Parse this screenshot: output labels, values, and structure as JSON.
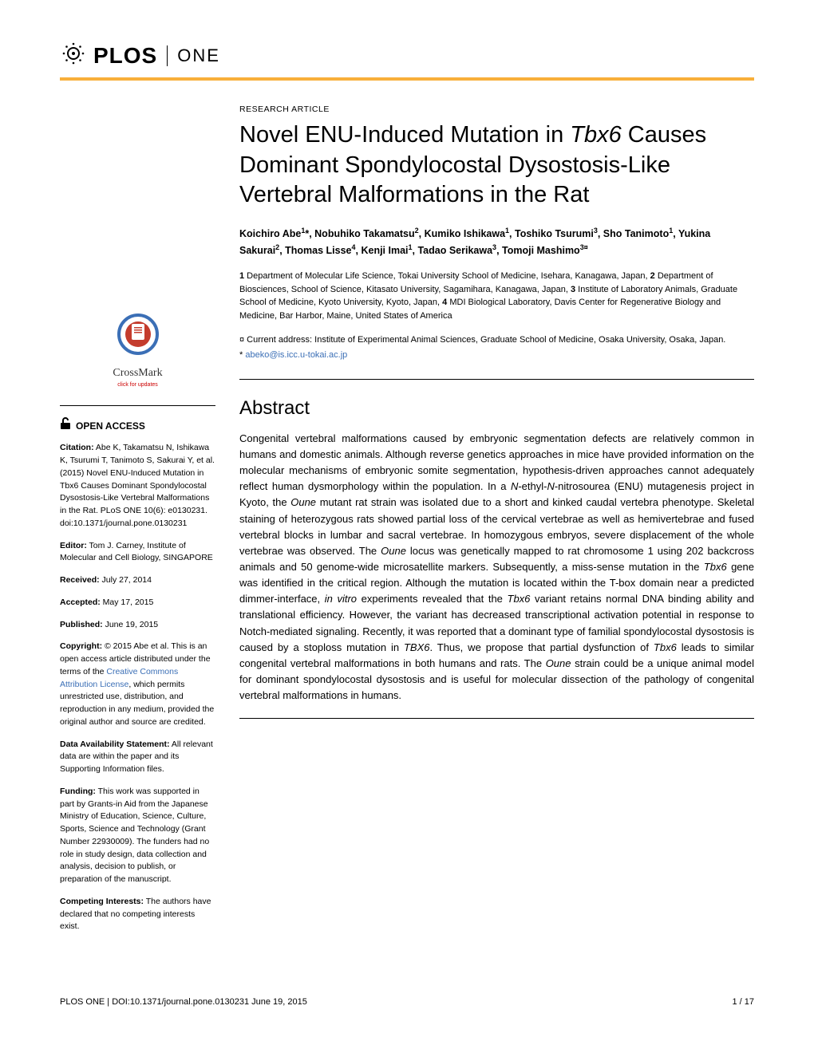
{
  "journal": {
    "logo_text": "PLOS",
    "sub_text": "ONE"
  },
  "article": {
    "type": "RESEARCH ARTICLE",
    "title_pre": "Novel ENU-Induced Mutation in ",
    "title_italic": "Tbx6",
    "title_post": " Causes Dominant Spondylocostal Dysostosis-Like Vertebral Malformations in the Rat",
    "authors_html": "Koichiro Abe<sup>1</sup>*, Nobuhiko Takamatsu<sup>2</sup>, Kumiko Ishikawa<sup>1</sup>, Toshiko Tsurumi<sup>3</sup>, Sho Tanimoto<sup>1</sup>, Yukina Sakurai<sup>2</sup>, Thomas Lisse<sup>4</sup>, Kenji Imai<sup>1</sup>, Tadao Serikawa<sup>3</sup>, Tomoji Mashimo<sup>3¤</sup>",
    "affiliations": "<span class='num'>1</span> Department of Molecular Life Science, Tokai University School of Medicine, Isehara, Kanagawa, Japan, <span class='num'>2</span> Department of Biosciences, School of Science, Kitasato University, Sagamihara, Kanagawa, Japan, <span class='num'>3</span> Institute of Laboratory Animals, Graduate School of Medicine, Kyoto University, Kyoto, Japan, <span class='num'>4</span> MDI Biological Laboratory, Davis Center for Regenerative Biology and Medicine, Bar Harbor, Maine, United States of America",
    "current_address": "¤ Current address: Institute of Experimental Animal Sciences, Graduate School of Medicine, Osaka University, Osaka, Japan.",
    "email_prefix": "* ",
    "email": "abeko@is.icc.u-tokai.ac.jp",
    "abstract_heading": "Abstract",
    "abstract": "Congenital vertebral malformations caused by embryonic segmentation defects are relatively common in humans and domestic animals. Although reverse genetics approaches in mice have provided information on the molecular mechanisms of embryonic somite segmentation, hypothesis-driven approaches cannot adequately reflect human dysmorphology within the population. In a <span class='italic'>N</span>-ethyl-<span class='italic'>N</span>-nitrosourea (ENU) mutagenesis project in Kyoto, the <span class='italic'>Oune</span> mutant rat strain was isolated due to a short and kinked caudal vertebra phenotype. Skeletal staining of heterozygous rats showed partial loss of the cervical vertebrae as well as hemivertebrae and fused vertebral blocks in lumbar and sacral vertebrae. In homozygous embryos, severe displacement of the whole vertebrae was observed. The <span class='italic'>Oune</span> locus was genetically mapped to rat chromosome 1 using 202 backcross animals and 50 genome-wide microsatellite markers. Subsequently, a miss-sense mutation in the <span class='italic'>Tbx6</span> gene was identified in the critical region. Although the mutation is located within the T-box domain near a predicted dimmer-interface, <span class='italic'>in vitro</span> experiments revealed that the <span class='italic'>Tbx6</span> variant retains normal DNA binding ability and translational efficiency. However, the variant has decreased transcriptional activation potential in response to Notch-mediated signaling. Recently, it was reported that a dominant type of familial spondylocostal dysostosis is caused by a stoploss mutation in <span class='italic'>TBX6</span>. Thus, we propose that partial dysfunction of <span class='italic'>Tbx6</span> leads to similar congenital vertebral malformations in both humans and rats. The <span class='italic'>Oune</span> strain could be a unique animal model for dominant spondylocostal dysostosis and is useful for molecular dissection of the pathology of congenital vertebral malformations in humans."
  },
  "sidebar": {
    "crossmark_label": "CrossMark",
    "crossmark_sub": "click for updates",
    "open_access": "OPEN ACCESS",
    "citation_label": "Citation:",
    "citation": " Abe K, Takamatsu N, Ishikawa K, Tsurumi T, Tanimoto S, Sakurai Y, et al. (2015) Novel ENU-Induced Mutation in <span class='italic'>Tbx6</span> Causes Dominant Spondylocostal Dysostosis-Like Vertebral Malformations in the Rat. PLoS ONE 10(6): e0130231. doi:10.1371/journal.pone.0130231",
    "editor_label": "Editor:",
    "editor": " Tom J. Carney, Institute of Molecular and Cell Biology, SINGAPORE",
    "received_label": "Received:",
    "received": " July 27, 2014",
    "accepted_label": "Accepted:",
    "accepted": " May 17, 2015",
    "published_label": "Published:",
    "published": " June 19, 2015",
    "copyright_label": "Copyright:",
    "copyright_pre": " © 2015 Abe et al. This is an open access article distributed under the terms of the ",
    "copyright_link": "Creative Commons Attribution License",
    "copyright_post": ", which permits unrestricted use, distribution, and reproduction in any medium, provided the original author and source are credited.",
    "data_label": "Data Availability Statement:",
    "data": " All relevant data are within the paper and its Supporting Information files.",
    "funding_label": "Funding:",
    "funding": " This work was supported in part by Grants-in Aid from the Japanese Ministry of Education, Science, Culture, Sports, Science and Technology (Grant Number 22930009). The funders had no role in study design, data collection and analysis, decision to publish, or preparation of the manuscript.",
    "competing_label": "Competing Interests:",
    "competing": " The authors have declared that no competing interests exist."
  },
  "footer": {
    "left": "PLOS ONE | DOI:10.1371/journal.pone.0130231   June 19, 2015",
    "right": "1 / 17"
  },
  "colors": {
    "accent": "#f8af3a",
    "link": "#3b6fb6",
    "text": "#000000",
    "background": "#ffffff"
  }
}
